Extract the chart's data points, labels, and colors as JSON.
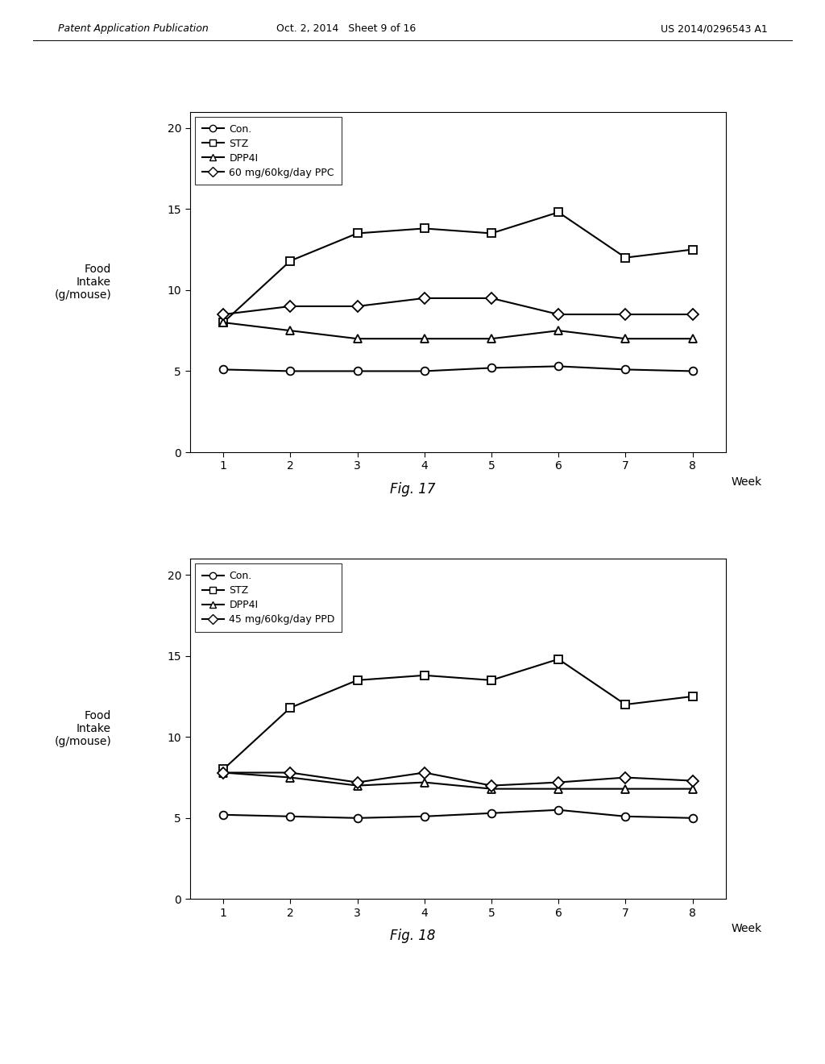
{
  "fig17": {
    "title": "Fig. 17",
    "series": {
      "Con": {
        "x": [
          1,
          2,
          3,
          4,
          5,
          6,
          7,
          8
        ],
        "y": [
          5.1,
          5.0,
          5.0,
          5.0,
          5.2,
          5.3,
          5.1,
          5.0
        ],
        "marker": "o",
        "label": "Con."
      },
      "STZ": {
        "x": [
          1,
          2,
          3,
          4,
          5,
          6,
          7,
          8
        ],
        "y": [
          8.0,
          11.8,
          13.5,
          13.8,
          13.5,
          14.8,
          12.0,
          12.5
        ],
        "marker": "s",
        "label": "STZ"
      },
      "DPP4I": {
        "x": [
          1,
          2,
          3,
          4,
          5,
          6,
          7,
          8
        ],
        "y": [
          8.0,
          7.5,
          7.0,
          7.0,
          7.0,
          7.5,
          7.0,
          7.0
        ],
        "marker": "^",
        "label": "DPP4I"
      },
      "PPC": {
        "x": [
          1,
          2,
          3,
          4,
          5,
          6,
          7,
          8
        ],
        "y": [
          8.5,
          9.0,
          9.0,
          9.5,
          9.5,
          8.5,
          8.5,
          8.5
        ],
        "marker": "D",
        "label": "60 mg/60kg/day PPC"
      }
    },
    "ylabel": "Food\nIntake\n(g/mouse)",
    "xlabel": "Week",
    "ylim": [
      0,
      21
    ],
    "xlim": [
      0.5,
      8.5
    ],
    "yticks": [
      0,
      5,
      10,
      15,
      20
    ],
    "xticks": [
      1,
      2,
      3,
      4,
      5,
      6,
      7,
      8
    ]
  },
  "fig18": {
    "title": "Fig. 18",
    "series": {
      "Con": {
        "x": [
          1,
          2,
          3,
          4,
          5,
          6,
          7,
          8
        ],
        "y": [
          5.2,
          5.1,
          5.0,
          5.1,
          5.3,
          5.5,
          5.1,
          5.0
        ],
        "marker": "o",
        "label": "Con."
      },
      "STZ": {
        "x": [
          1,
          2,
          3,
          4,
          5,
          6,
          7,
          8
        ],
        "y": [
          8.0,
          11.8,
          13.5,
          13.8,
          13.5,
          14.8,
          12.0,
          12.5
        ],
        "marker": "s",
        "label": "STZ"
      },
      "DPP4I": {
        "x": [
          1,
          2,
          3,
          4,
          5,
          6,
          7,
          8
        ],
        "y": [
          7.8,
          7.5,
          7.0,
          7.2,
          6.8,
          6.8,
          6.8,
          6.8
        ],
        "marker": "^",
        "label": "DPP4I"
      },
      "PPD": {
        "x": [
          1,
          2,
          3,
          4,
          5,
          6,
          7,
          8
        ],
        "y": [
          7.8,
          7.8,
          7.2,
          7.8,
          7.0,
          7.2,
          7.5,
          7.3
        ],
        "marker": "D",
        "label": "45 mg/60kg/day PPD"
      }
    },
    "ylabel": "Food\nIntake\n(g/mouse)",
    "xlabel": "Week",
    "ylim": [
      0,
      21
    ],
    "xlim": [
      0.5,
      8.5
    ],
    "yticks": [
      0,
      5,
      10,
      15,
      20
    ],
    "xticks": [
      1,
      2,
      3,
      4,
      5,
      6,
      7,
      8
    ]
  },
  "header_left": "Patent Application Publication",
  "header_mid": "Oct. 2, 2014   Sheet 9 of 16",
  "header_right": "US 2014/0296543 A1",
  "line_color": "black",
  "bg_color": "white",
  "marker_size": 7,
  "line_width": 1.5
}
